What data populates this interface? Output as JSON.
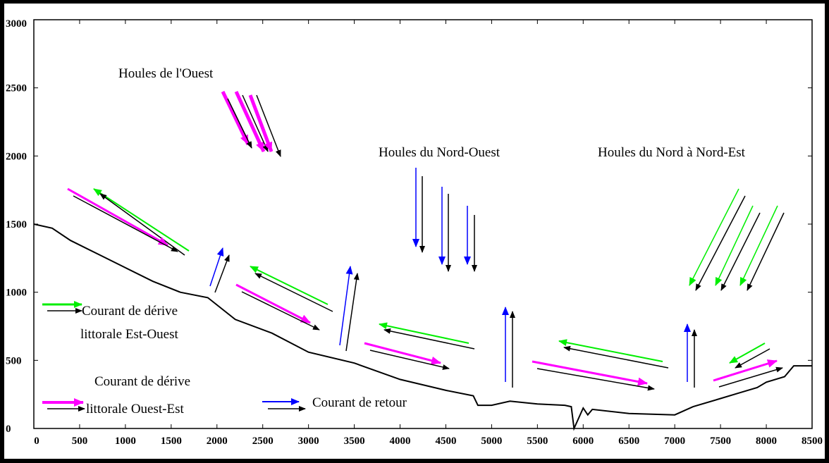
{
  "axes": {
    "x_ticks": [
      "0",
      "500",
      "1000",
      "1500",
      "2000",
      "2500",
      "3000",
      "3500",
      "4000",
      "4500",
      "5000",
      "5500",
      "6000",
      "6500",
      "7000",
      "7500",
      "8000",
      "8500"
    ],
    "y_ticks": [
      "0",
      "500",
      "1000",
      "1500",
      "2000",
      "2500",
      "3000"
    ],
    "xlim": [
      0,
      8500
    ],
    "ylim": [
      0,
      3000
    ]
  },
  "labels": {
    "houles_ouest": "Houles de l'Ouest",
    "houles_nord_ouest": "Houles du Nord-Ouest",
    "houles_nord_nord_est": "Houles du Nord à Nord-Est",
    "legend_est_ouest_1": "Courant de dérive",
    "legend_est_ouest_2": "littorale Est-Ouest",
    "legend_ouest_est_1": "Courant de dérive",
    "legend_ouest_est_2": "littorale Ouest-Est",
    "legend_retour": "Courant de retour"
  },
  "colors": {
    "drift_est_ouest": "#00ee00",
    "drift_ouest_est": "#ff00ff",
    "retour": "#0000ff",
    "coastline": "#000000",
    "frame": "#000000",
    "background": "#ffffff"
  },
  "coastline": [
    [
      0,
      1500
    ],
    [
      200,
      1470
    ],
    [
      400,
      1380
    ],
    [
      700,
      1280
    ],
    [
      1000,
      1180
    ],
    [
      1300,
      1080
    ],
    [
      1600,
      1000
    ],
    [
      1900,
      960
    ],
    [
      2200,
      800
    ],
    [
      2600,
      700
    ],
    [
      3000,
      560
    ],
    [
      3500,
      480
    ],
    [
      4000,
      360
    ],
    [
      4500,
      280
    ],
    [
      4800,
      240
    ],
    [
      4850,
      170
    ],
    [
      5000,
      170
    ],
    [
      5200,
      200
    ],
    [
      5500,
      180
    ],
    [
      5800,
      170
    ],
    [
      5870,
      160
    ],
    [
      5900,
      0
    ],
    [
      6000,
      150
    ],
    [
      6050,
      100
    ],
    [
      6100,
      140
    ],
    [
      6500,
      110
    ],
    [
      7000,
      100
    ],
    [
      7200,
      160
    ],
    [
      7500,
      220
    ],
    [
      7700,
      260
    ],
    [
      7900,
      300
    ],
    [
      8000,
      340
    ],
    [
      8200,
      380
    ],
    [
      8300,
      460
    ],
    [
      8500,
      460
    ]
  ]
}
